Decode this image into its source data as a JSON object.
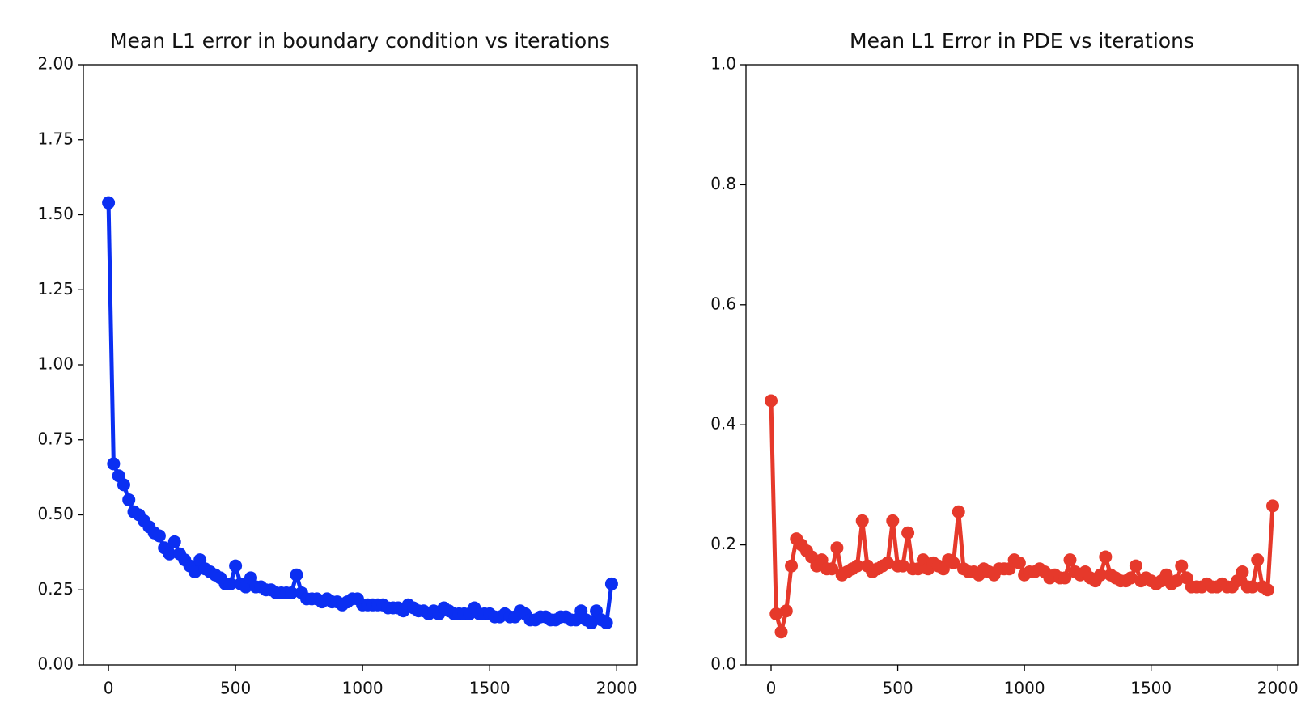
{
  "chart_data": [
    {
      "type": "line",
      "title": "Mean L1 error in boundary condition vs iterations",
      "x": [
        0,
        20,
        40,
        60,
        80,
        100,
        120,
        140,
        160,
        180,
        200,
        220,
        240,
        260,
        280,
        300,
        320,
        340,
        360,
        380,
        400,
        420,
        440,
        460,
        480,
        500,
        520,
        540,
        560,
        580,
        600,
        620,
        640,
        660,
        680,
        700,
        720,
        740,
        760,
        780,
        800,
        820,
        840,
        860,
        880,
        900,
        920,
        940,
        960,
        980,
        1000,
        1020,
        1040,
        1060,
        1080,
        1100,
        1120,
        1140,
        1160,
        1180,
        1200,
        1220,
        1240,
        1260,
        1280,
        1300,
        1320,
        1340,
        1360,
        1380,
        1400,
        1420,
        1440,
        1460,
        1480,
        1500,
        1520,
        1540,
        1560,
        1580,
        1600,
        1620,
        1640,
        1660,
        1680,
        1700,
        1720,
        1740,
        1760,
        1780,
        1800,
        1820,
        1840,
        1860,
        1880,
        1900,
        1920,
        1940,
        1960,
        1980
      ],
      "series": [
        {
          "color": "#0b2ff2",
          "values": [
            1.54,
            0.67,
            0.63,
            0.6,
            0.55,
            0.51,
            0.5,
            0.48,
            0.46,
            0.44,
            0.43,
            0.39,
            0.37,
            0.41,
            0.37,
            0.35,
            0.33,
            0.31,
            0.35,
            0.32,
            0.31,
            0.3,
            0.29,
            0.27,
            0.27,
            0.33,
            0.27,
            0.26,
            0.29,
            0.26,
            0.26,
            0.25,
            0.25,
            0.24,
            0.24,
            0.24,
            0.24,
            0.3,
            0.24,
            0.22,
            0.22,
            0.22,
            0.21,
            0.22,
            0.21,
            0.21,
            0.2,
            0.21,
            0.22,
            0.22,
            0.2,
            0.2,
            0.2,
            0.2,
            0.2,
            0.19,
            0.19,
            0.19,
            0.18,
            0.2,
            0.19,
            0.18,
            0.18,
            0.17,
            0.18,
            0.17,
            0.19,
            0.18,
            0.17,
            0.17,
            0.17,
            0.17,
            0.19,
            0.17,
            0.17,
            0.17,
            0.16,
            0.16,
            0.17,
            0.16,
            0.16,
            0.18,
            0.17,
            0.15,
            0.15,
            0.16,
            0.16,
            0.15,
            0.15,
            0.16,
            0.16,
            0.15,
            0.15,
            0.18,
            0.15,
            0.14,
            0.18,
            0.15,
            0.14,
            0.27
          ]
        }
      ],
      "xlim": [
        -99,
        2079
      ],
      "ylim": [
        0,
        2
      ],
      "xticks": [
        0,
        500,
        1000,
        1500,
        2000
      ],
      "yticks": [
        {
          "value": 0,
          "label": "0.00"
        },
        {
          "value": 0.25,
          "label": "0.25"
        },
        {
          "value": 0.5,
          "label": "0.50"
        },
        {
          "value": 0.75,
          "label": "0.75"
        },
        {
          "value": 1,
          "label": "1.00"
        },
        {
          "value": 1.25,
          "label": "1.25"
        },
        {
          "value": 1.5,
          "label": "1.50"
        },
        {
          "value": 1.75,
          "label": "1.75"
        },
        {
          "value": 2,
          "label": "2.00"
        }
      ]
    },
    {
      "type": "line",
      "title": "Mean L1 Error in PDE vs iterations",
      "x": [
        0,
        20,
        40,
        60,
        80,
        100,
        120,
        140,
        160,
        180,
        200,
        220,
        240,
        260,
        280,
        300,
        320,
        340,
        360,
        380,
        400,
        420,
        440,
        460,
        480,
        500,
        520,
        540,
        560,
        580,
        600,
        620,
        640,
        660,
        680,
        700,
        720,
        740,
        760,
        780,
        800,
        820,
        840,
        860,
        880,
        900,
        920,
        940,
        960,
        980,
        1000,
        1020,
        1040,
        1060,
        1080,
        1100,
        1120,
        1140,
        1160,
        1180,
        1200,
        1220,
        1240,
        1260,
        1280,
        1300,
        1320,
        1340,
        1360,
        1380,
        1400,
        1420,
        1440,
        1460,
        1480,
        1500,
        1520,
        1540,
        1560,
        1580,
        1600,
        1620,
        1640,
        1660,
        1680,
        1700,
        1720,
        1740,
        1760,
        1780,
        1800,
        1820,
        1840,
        1860,
        1880,
        1900,
        1920,
        1940,
        1960,
        1980
      ],
      "series": [
        {
          "color": "#e6392b",
          "values": [
            0.44,
            0.085,
            0.055,
            0.09,
            0.165,
            0.21,
            0.2,
            0.19,
            0.18,
            0.165,
            0.175,
            0.16,
            0.16,
            0.195,
            0.15,
            0.155,
            0.16,
            0.165,
            0.24,
            0.165,
            0.155,
            0.16,
            0.165,
            0.17,
            0.24,
            0.165,
            0.165,
            0.22,
            0.16,
            0.16,
            0.175,
            0.16,
            0.17,
            0.165,
            0.16,
            0.175,
            0.17,
            0.255,
            0.16,
            0.155,
            0.155,
            0.15,
            0.16,
            0.155,
            0.15,
            0.16,
            0.16,
            0.16,
            0.175,
            0.17,
            0.15,
            0.155,
            0.155,
            0.16,
            0.155,
            0.145,
            0.15,
            0.145,
            0.145,
            0.175,
            0.155,
            0.15,
            0.155,
            0.145,
            0.14,
            0.15,
            0.18,
            0.15,
            0.145,
            0.14,
            0.14,
            0.145,
            0.165,
            0.14,
            0.145,
            0.14,
            0.135,
            0.14,
            0.15,
            0.135,
            0.14,
            0.165,
            0.145,
            0.13,
            0.13,
            0.13,
            0.135,
            0.13,
            0.13,
            0.135,
            0.13,
            0.13,
            0.14,
            0.155,
            0.13,
            0.13,
            0.175,
            0.13,
            0.125,
            0.265
          ]
        }
      ],
      "xlim": [
        -99,
        2079
      ],
      "ylim": [
        0,
        1
      ],
      "xticks": [
        0,
        500,
        1000,
        1500,
        2000
      ],
      "yticks": [
        {
          "value": 0,
          "label": "0.0"
        },
        {
          "value": 0.2,
          "label": "0.2"
        },
        {
          "value": 0.4,
          "label": "0.4"
        },
        {
          "value": 0.6,
          "label": "0.6"
        },
        {
          "value": 0.8,
          "label": "0.8"
        },
        {
          "value": 1,
          "label": "1.0"
        }
      ]
    }
  ]
}
